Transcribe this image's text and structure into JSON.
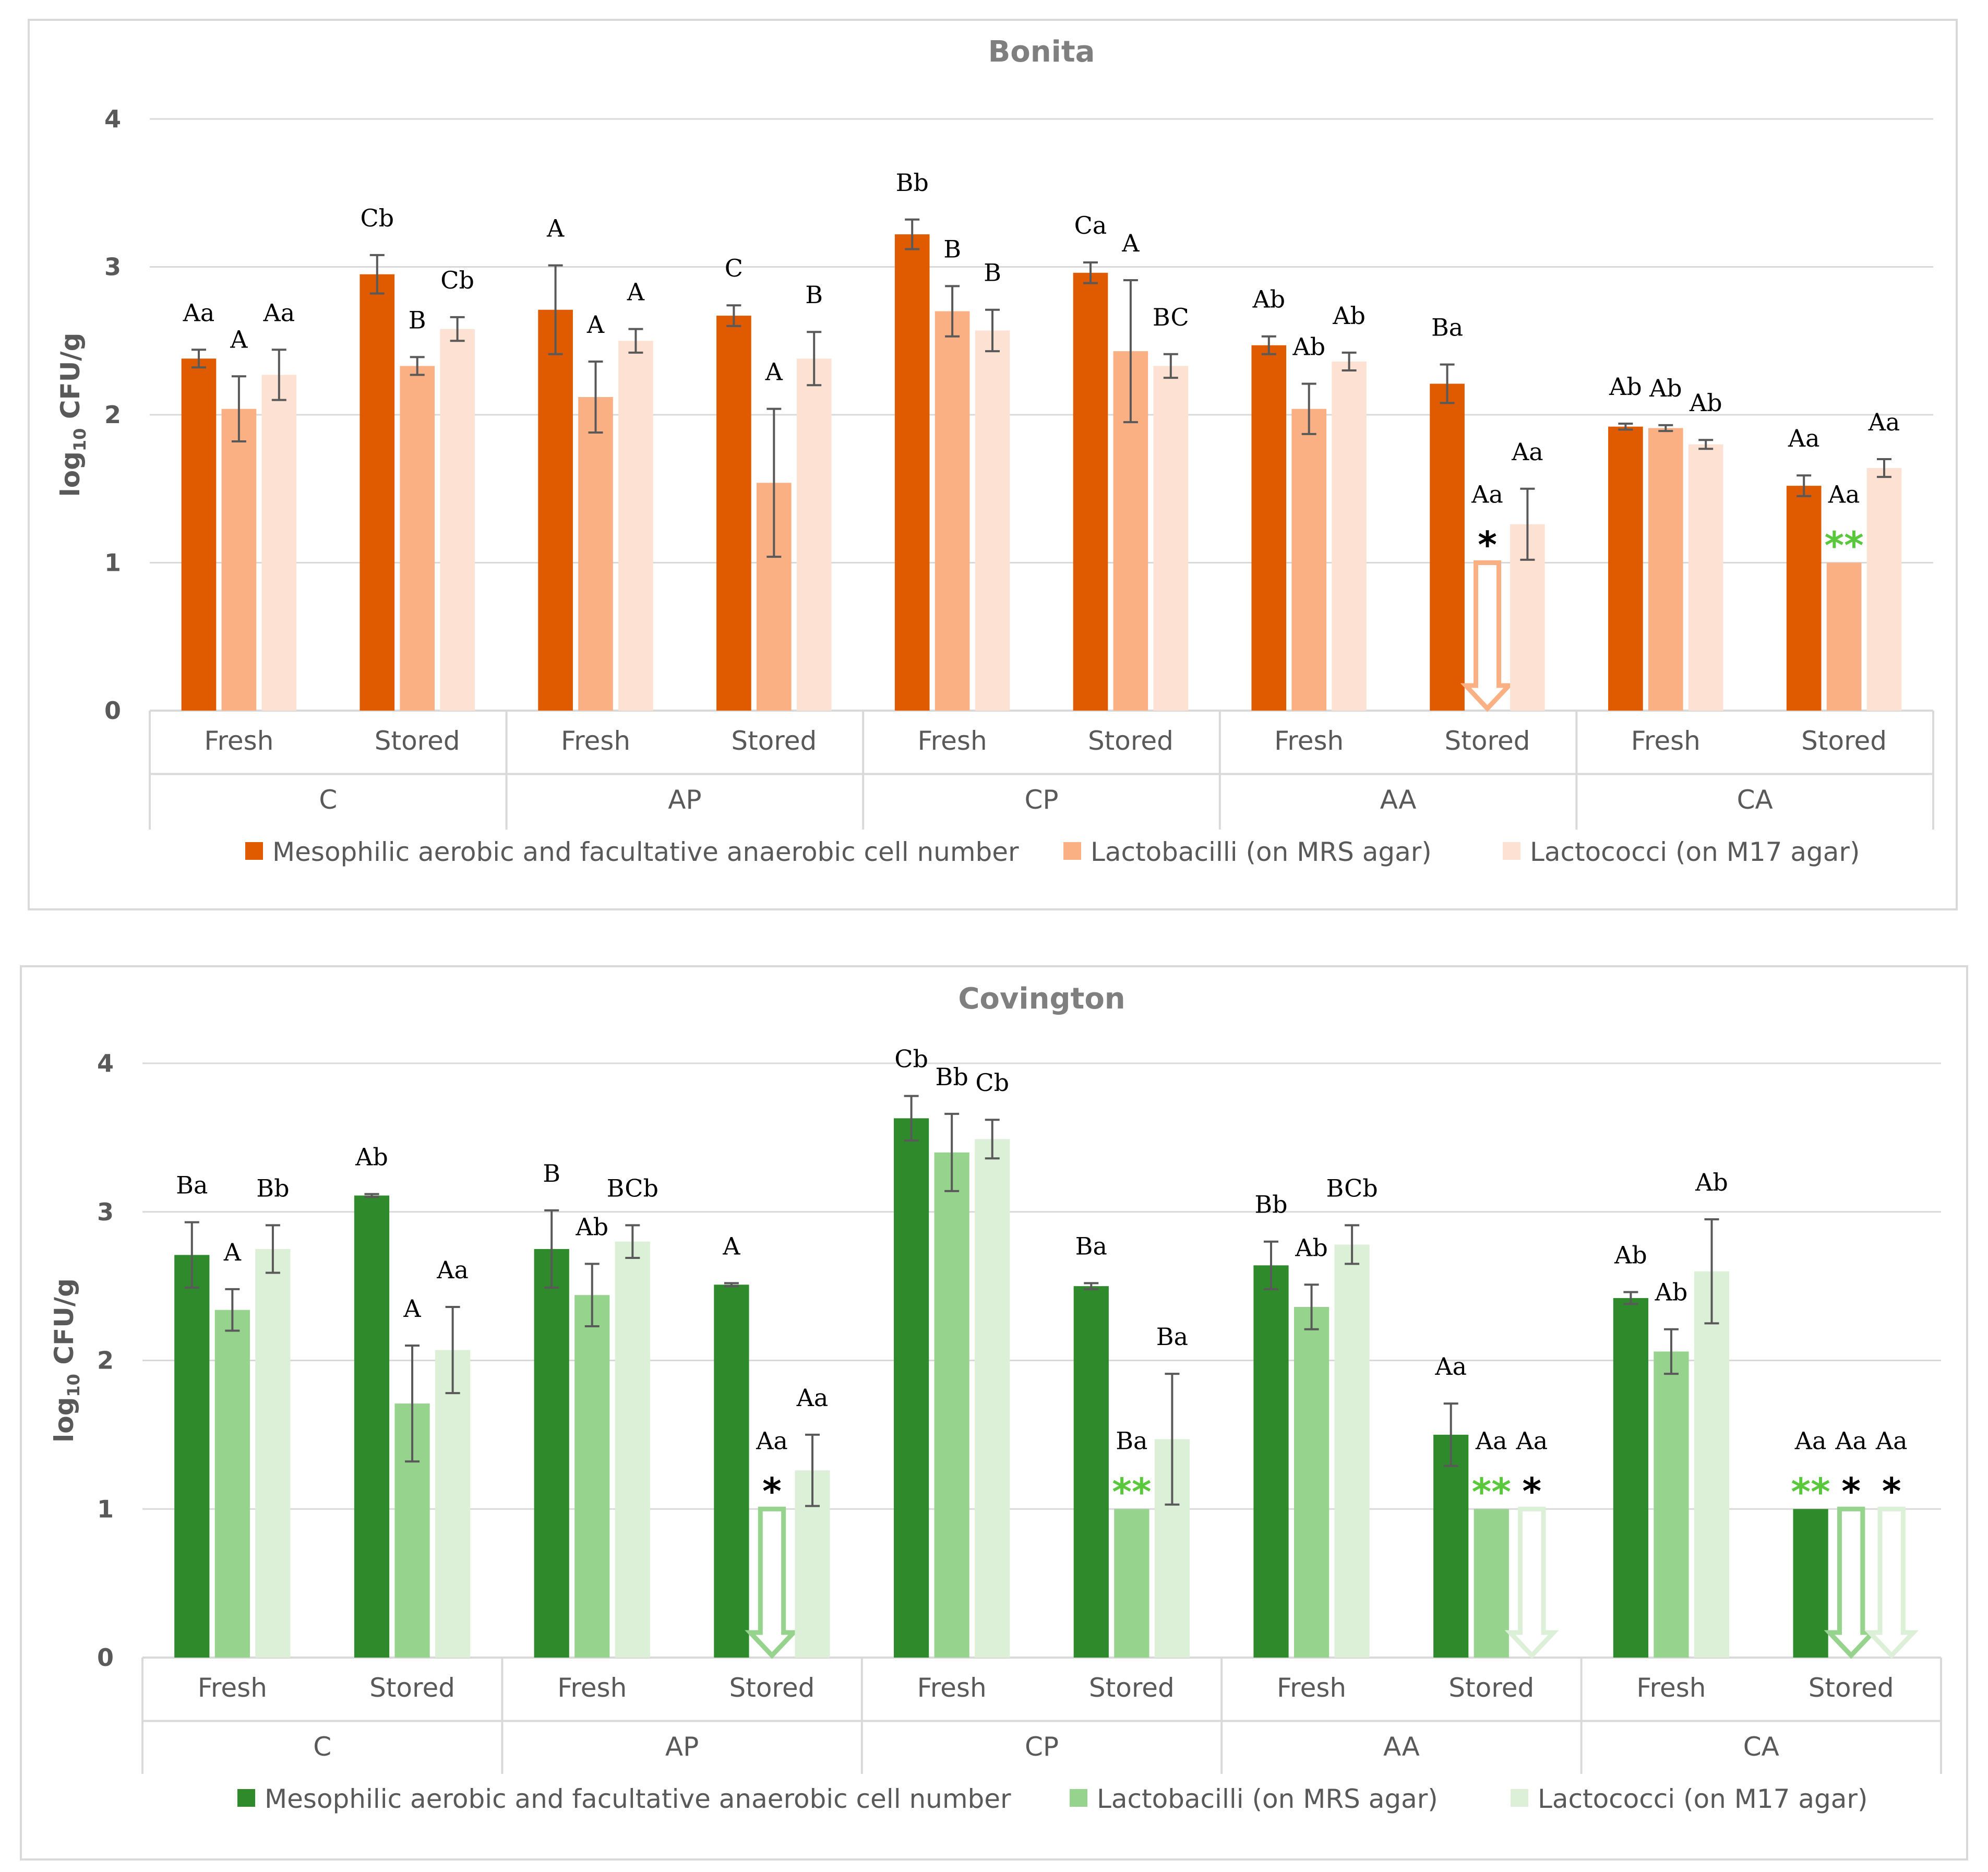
{
  "chart_data": [
    {
      "type": "bar",
      "title": "Bonita",
      "ylabel_main": "log",
      "ylabel_sub": "10",
      "ylabel_rest": " CFU/g",
      "ylim": [
        0,
        4
      ],
      "yticks": [
        "0",
        "1",
        "2",
        "3",
        "4"
      ],
      "grid": true,
      "legend_position": "bottom",
      "groups": [
        "C",
        "AP",
        "CP",
        "AA",
        "CA"
      ],
      "subgroups": [
        "Fresh",
        "Stored"
      ],
      "colors": [
        "#e05a00",
        "#fbb084",
        "#fde2d3"
      ],
      "series": [
        {
          "name": "Mesophilic aerobic and facultative anaerobic cell number",
          "values": [
            2.38,
            2.95,
            2.71,
            2.67,
            3.22,
            2.96,
            2.47,
            2.21,
            1.92,
            1.52
          ],
          "errors": [
            0.06,
            0.13,
            0.3,
            0.07,
            0.1,
            0.07,
            0.06,
            0.13,
            0.02,
            0.07
          ],
          "labels": [
            "Aa",
            "Cb",
            "A",
            "C",
            "Bb",
            "Ca",
            "Ab",
            "Ba",
            "Ab",
            "Aa"
          ]
        },
        {
          "name": "Lactobacilli (on MRS agar)",
          "values": [
            2.04,
            2.33,
            2.12,
            1.54,
            2.7,
            2.43,
            2.04,
            1.0,
            1.91,
            1.0
          ],
          "errors": [
            0.22,
            0.06,
            0.24,
            0.5,
            0.17,
            0.48,
            0.17,
            0,
            0.02,
            0
          ],
          "labels": [
            "A",
            "B",
            "A",
            "A",
            "B",
            "A",
            "Ab",
            "Aa",
            "Ab",
            "Aa"
          ],
          "markers": [
            "",
            "",
            "",
            "",
            "",
            "",
            "",
            "arrow",
            "",
            "green"
          ]
        },
        {
          "name": "Lactococci (on M17 agar)",
          "values": [
            2.27,
            2.58,
            2.5,
            2.38,
            2.57,
            2.33,
            2.36,
            1.26,
            1.8,
            1.64
          ],
          "errors": [
            0.17,
            0.08,
            0.08,
            0.18,
            0.14,
            0.08,
            0.06,
            0.24,
            0.03,
            0.06
          ],
          "labels": [
            "Aa",
            "Cb",
            "A",
            "B",
            "B",
            "BC",
            "Ab",
            "Aa",
            "Ab",
            "Aa"
          ],
          "markers": [
            "",
            "",
            "",
            "",
            "",
            "",
            "",
            "",
            "",
            ""
          ]
        }
      ]
    },
    {
      "type": "bar",
      "title": "Covington",
      "ylabel_main": "log",
      "ylabel_sub": "10",
      "ylabel_rest": " CFU/g",
      "ylim": [
        0,
        4
      ],
      "yticks": [
        "0",
        "1",
        "2",
        "3",
        "4"
      ],
      "grid": true,
      "legend_position": "bottom",
      "groups": [
        "C",
        "AP",
        "CP",
        "AA",
        "CA"
      ],
      "subgroups": [
        "Fresh",
        "Stored"
      ],
      "colors": [
        "#2f8a2c",
        "#96d38d",
        "#dcf0d8"
      ],
      "series": [
        {
          "name": "Mesophilic aerobic and facultative anaerobic cell number",
          "values": [
            2.71,
            3.11,
            2.75,
            2.51,
            3.63,
            2.5,
            2.64,
            1.5,
            2.42,
            1.0
          ],
          "errors": [
            0.22,
            0.01,
            0.26,
            0.01,
            0.15,
            0.02,
            0.16,
            0.21,
            0.04,
            0
          ],
          "labels": [
            "Ba",
            "Ab",
            "B",
            "A",
            "Cb",
            "Ba",
            "Bb",
            "Aa",
            "Ab",
            "Aa"
          ],
          "markers": [
            "",
            "",
            "",
            "",
            "",
            "",
            "",
            "",
            "",
            "green"
          ]
        },
        {
          "name": "Lactobacilli (on MRS agar)",
          "values": [
            2.34,
            1.71,
            2.44,
            1.0,
            3.4,
            1.0,
            2.36,
            1.0,
            2.06,
            1.0
          ],
          "errors": [
            0.14,
            0.39,
            0.21,
            0,
            0.26,
            0,
            0.15,
            0,
            0.15,
            0
          ],
          "labels": [
            "A",
            "A",
            "Ab",
            "Aa",
            "Bb",
            "Ba",
            "Ab",
            "Aa",
            "Ab",
            "Aa"
          ],
          "markers": [
            "",
            "",
            "",
            "arrow",
            "",
            "green",
            "",
            "green",
            "",
            "arrow"
          ]
        },
        {
          "name": "Lactococci (on M17 agar)",
          "values": [
            2.75,
            2.07,
            2.8,
            1.26,
            3.49,
            1.47,
            2.78,
            1.0,
            2.6,
            1.0
          ],
          "errors": [
            0.16,
            0.29,
            0.11,
            0.24,
            0.13,
            0.44,
            0.13,
            0,
            0.35,
            0
          ],
          "labels": [
            "Bb",
            "Aa",
            "BCb",
            "Aa",
            "Cb",
            "Ba",
            "BCb",
            "Aa",
            "Ab",
            "Aa"
          ],
          "markers": [
            "",
            "",
            "",
            "",
            "",
            "",
            "",
            "arrow",
            "",
            "arrow"
          ]
        }
      ]
    }
  ]
}
